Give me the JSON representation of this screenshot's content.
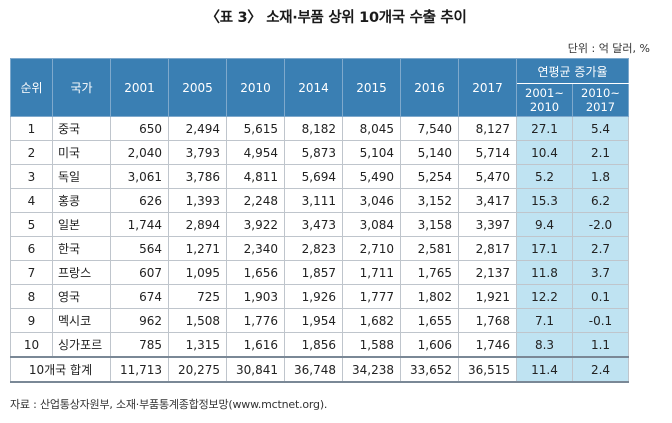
{
  "title": "〈표 3〉 소재·부품 상위 10개국 수출 추이",
  "unit": "단위 : 억 달러, %",
  "headers": {
    "rank": "순위",
    "country": "국가",
    "years": [
      "2001",
      "2005",
      "2010",
      "2014",
      "2015",
      "2016",
      "2017"
    ],
    "growth": "연평균 증가율",
    "growth_periods": [
      {
        "line1": "2001~",
        "line2": "2010"
      },
      {
        "line1": "2010~",
        "line2": "2017"
      }
    ]
  },
  "rows": [
    {
      "rank": "1",
      "country": "중국",
      "values": [
        "650",
        "2,494",
        "5,615",
        "8,182",
        "8,045",
        "7,540",
        "8,127"
      ],
      "growth": [
        "27.1",
        "5.4"
      ]
    },
    {
      "rank": "2",
      "country": "미국",
      "values": [
        "2,040",
        "3,793",
        "4,954",
        "5,873",
        "5,104",
        "5,140",
        "5,714"
      ],
      "growth": [
        "10.4",
        "2.1"
      ]
    },
    {
      "rank": "3",
      "country": "독일",
      "values": [
        "3,061",
        "3,786",
        "4,811",
        "5,694",
        "5,490",
        "5,254",
        "5,470"
      ],
      "growth": [
        "5.2",
        "1.8"
      ]
    },
    {
      "rank": "4",
      "country": "홍콩",
      "values": [
        "626",
        "1,393",
        "2,248",
        "3,111",
        "3,046",
        "3,152",
        "3,417"
      ],
      "growth": [
        "15.3",
        "6.2"
      ]
    },
    {
      "rank": "5",
      "country": "일본",
      "values": [
        "1,744",
        "2,894",
        "3,922",
        "3,473",
        "3,084",
        "3,158",
        "3,397"
      ],
      "growth": [
        "9.4",
        "-2.0"
      ]
    },
    {
      "rank": "6",
      "country": "한국",
      "values": [
        "564",
        "1,271",
        "2,340",
        "2,823",
        "2,710",
        "2,581",
        "2,817"
      ],
      "growth": [
        "17.1",
        "2.7"
      ]
    },
    {
      "rank": "7",
      "country": "프랑스",
      "values": [
        "607",
        "1,095",
        "1,656",
        "1,857",
        "1,711",
        "1,765",
        "2,137"
      ],
      "growth": [
        "11.8",
        "3.7"
      ]
    },
    {
      "rank": "8",
      "country": "영국",
      "values": [
        "674",
        "725",
        "1,903",
        "1,926",
        "1,777",
        "1,802",
        "1,921"
      ],
      "growth": [
        "12.2",
        "0.1"
      ]
    },
    {
      "rank": "9",
      "country": "멕시코",
      "values": [
        "962",
        "1,508",
        "1,776",
        "1,954",
        "1,682",
        "1,655",
        "1,768"
      ],
      "growth": [
        "7.1",
        "-0.1"
      ]
    },
    {
      "rank": "10",
      "country": "싱가포르",
      "values": [
        "785",
        "1,315",
        "1,616",
        "1,856",
        "1,588",
        "1,606",
        "1,746"
      ],
      "growth": [
        "8.3",
        "1.1"
      ]
    }
  ],
  "total": {
    "label": "10개국 합계",
    "values": [
      "11,713",
      "20,275",
      "30,841",
      "36,748",
      "34,238",
      "33,652",
      "36,515"
    ],
    "growth": [
      "11.4",
      "2.4"
    ]
  },
  "source": "자료 : 산업통상자원부, 소재·부품통계종합정보망(www.mctnet.org)."
}
